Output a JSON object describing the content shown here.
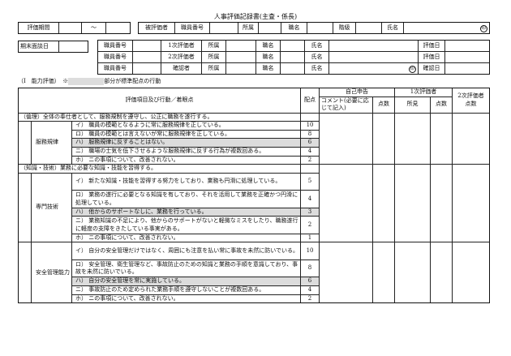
{
  "title": "人事評価記録書(主査・係長)",
  "period": {
    "label": "評価期間",
    "tilde": "〜"
  },
  "evaluatee": {
    "label": "被評価者",
    "staff_no": "職員番号",
    "dept": "所属",
    "position": "職名",
    "grade": "階級",
    "name": "氏名",
    "seal": "印"
  },
  "interview": {
    "label": "期末面談日"
  },
  "evaluators": [
    {
      "staff_no": "職員番号",
      "role": "1次評価者",
      "dept": "所属",
      "position": "職名",
      "name": "氏名",
      "date": "評価日"
    },
    {
      "staff_no": "職員番号",
      "role": "2次評価者",
      "dept": "所属",
      "position": "職名",
      "name": "氏名",
      "date": "評価日"
    },
    {
      "staff_no": "職員番号",
      "role": "確認者",
      "dept": "所属",
      "position": "職名",
      "name": "氏名",
      "date": "確認日",
      "seal": "印"
    }
  ],
  "section_caption": {
    "prefix": "（I　能力評価）　※",
    "suffix": "部分が標準配点の行動"
  },
  "header": {
    "item": "評価項目及び行動／着眼点",
    "points": "配点",
    "self": "自己申告",
    "comment": "コメント(必要に応じて記入)",
    "self_score": "点数",
    "first": "1次評価者",
    "opinion": "所見",
    "first_score": "点数",
    "second": "2次評価者点数"
  },
  "sections": [
    {
      "title": "（倫理）全体の奉仕者として、服務規制を遵守し、公正に職務を遂行する。",
      "category": "服務規律",
      "items": [
        {
          "text": "イ） 職員の模範となるように常に服務規律を正している。",
          "points": "10"
        },
        {
          "text": "ロ） 職員の模範とは言えないが常に服務規律を正している。",
          "points": "8"
        },
        {
          "text": "ハ） 服務規律に反することはない。",
          "points": "6",
          "standard": true
        },
        {
          "text": "ニ） 職場の士気を低下させるような服務規律に反する行為が複数回ある。",
          "points": "4"
        },
        {
          "text": "ホ） ニの事項について、改善されない。",
          "points": "2"
        }
      ]
    },
    {
      "title": "（知識・技術）業務に必要な知識・技能を習得する。",
      "category": "専門技術",
      "items": [
        {
          "text": "イ） 新たな知識・技能を習得する努力をしており、業務も円滑に処理している。",
          "points": "5",
          "double": true
        },
        {
          "text": "ロ） 業務の遂行に必要となる知識を有しており、それを活用して業務を正確かつ円滑に処理している。",
          "points": "4",
          "double": true
        },
        {
          "text": "ハ） 他からのサポートなしに、業務を行っている。",
          "points": "3",
          "standard": true
        },
        {
          "text": "ニ） 業務知識の不足により、他からのサポートがないと軽微なミスをしたり、職務遂行に軽度の支障をきたしている事実がある。",
          "points": "2",
          "double": true
        },
        {
          "text": "ホ） ニの事項について、改善されない。",
          "points": "1"
        }
      ]
    },
    {
      "title": "",
      "category": "安全管理能力",
      "items": [
        {
          "text": "イ） 自分の安全管理だけではなく、周囲にも注意を払い常に事故を未然に防いでいる。",
          "points": "10",
          "double": true
        },
        {
          "text": "ロ） 安全管理、衛生管理など、事故防止のための知識と業務の手順を意識しており、事故を未然に防いでいる。",
          "points": "8",
          "double": true
        },
        {
          "text": "ハ） 自分の安全管理を常に実施している。",
          "points": "6",
          "standard": true
        },
        {
          "text": "ニ） 事故防止のため定められた業務手順を遵守しないことが複数回ある。",
          "points": "4"
        },
        {
          "text": "ホ） ニの事項について、改善されない。",
          "points": "2"
        }
      ]
    }
  ]
}
